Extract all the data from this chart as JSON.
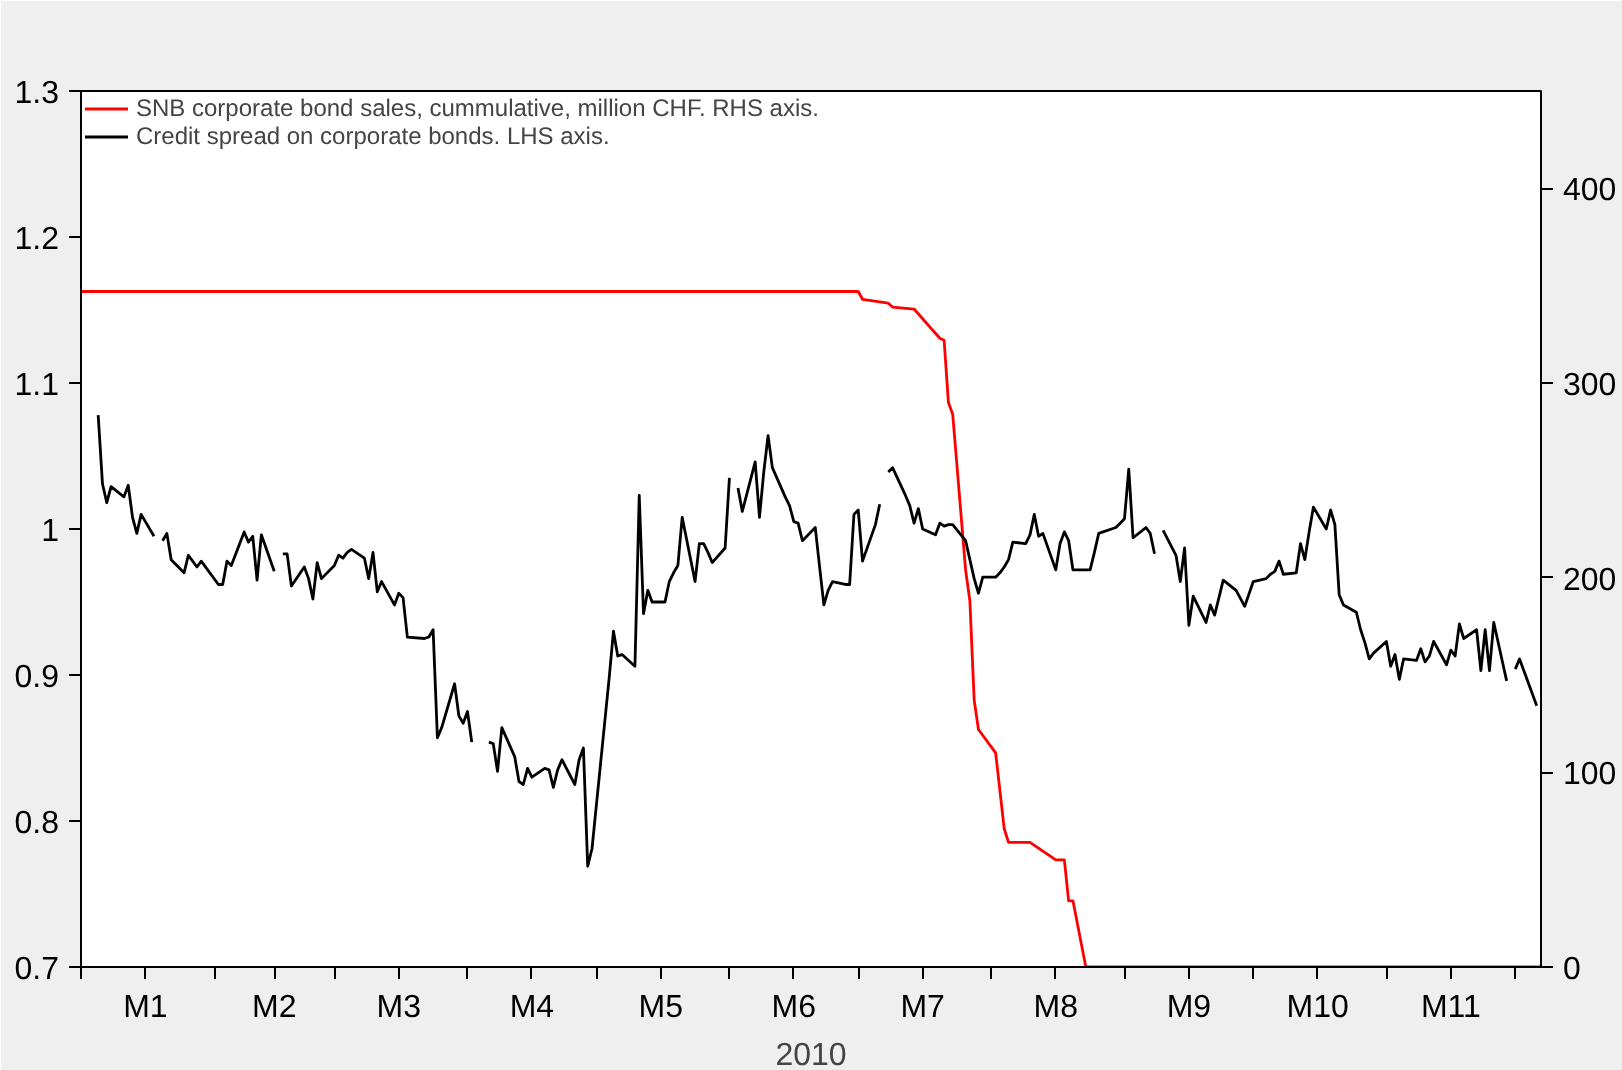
{
  "chart_data": {
    "type": "line",
    "xlabel": "2010",
    "xlim": [
      "2010-01-01",
      "2010-12-07"
    ],
    "xticks": [
      {
        "value": "2010-01-01",
        "label": null
      },
      {
        "value": "2010-02-01",
        "label": null
      },
      {
        "value": "2010-03-01",
        "label": null
      },
      {
        "value": "2010-04-01",
        "label": null
      },
      {
        "value": "2010-05-01",
        "label": null
      },
      {
        "value": "2010-06-01",
        "label": null
      },
      {
        "value": "2010-07-01",
        "label": null
      },
      {
        "value": "2010-08-01",
        "label": null
      },
      {
        "value": "2010-09-01",
        "label": null
      },
      {
        "value": "2010-10-01",
        "label": null
      },
      {
        "value": "2010-11-01",
        "label": null
      },
      {
        "value": "2010-12-01",
        "label": null
      },
      {
        "value": "2010-01-16",
        "label": "M1"
      },
      {
        "value": "2010-02-15",
        "label": "M2"
      },
      {
        "value": "2010-03-16",
        "label": "M3"
      },
      {
        "value": "2010-04-16",
        "label": "M4"
      },
      {
        "value": "2010-05-16",
        "label": "M5"
      },
      {
        "value": "2010-06-16",
        "label": "M6"
      },
      {
        "value": "2010-07-16",
        "label": "M7"
      },
      {
        "value": "2010-08-16",
        "label": "M8"
      },
      {
        "value": "2010-09-16",
        "label": "M9"
      },
      {
        "value": "2010-10-16",
        "label": "M10"
      },
      {
        "value": "2010-11-16",
        "label": "M11"
      }
    ],
    "ylim": [
      0.7,
      1.3
    ],
    "yticks": [
      0.7,
      0.8,
      0.9,
      1.0,
      1.1,
      1.2,
      1.3
    ],
    "y2lim": [
      0,
      450
    ],
    "y2ticks": [
      0,
      100,
      200,
      300,
      400
    ],
    "legend": "top left",
    "grid": false,
    "marker": "none",
    "line_style": "solid",
    "series": [
      {
        "name": "SNB corporate bond sales, cummulative, million CHF. RHS axis.",
        "color": "#ff0000",
        "axis": "y2",
        "x": [
          "2010-01-01",
          "2010-07-01",
          "2010-07-02",
          "2010-07-08",
          "2010-07-09",
          "2010-07-14",
          "2010-07-16",
          "2010-07-20",
          "2010-07-21",
          "2010-07-22",
          "2010-07-23",
          "2010-07-26",
          "2010-07-27",
          "2010-07-28",
          "2010-07-29",
          "2010-08-02",
          "2010-08-04",
          "2010-08-05",
          "2010-08-10",
          "2010-08-16",
          "2010-08-18",
          "2010-08-19",
          "2010-08-20",
          "2010-08-23",
          "2010-12-07"
        ],
        "values": [
          347,
          347,
          343,
          341,
          339,
          338,
          333,
          323,
          322,
          290,
          284,
          204,
          188,
          137,
          122,
          110,
          71,
          64,
          64,
          55,
          55,
          34,
          34,
          0,
          0
        ]
      },
      {
        "name": "Credit spread on corporate bonds. LHS axis.",
        "color": "#000000",
        "x": [
          "2010-01-05",
          "2010-01-06",
          "2010-01-07",
          "2010-01-08",
          "2010-01-11",
          "2010-01-12",
          "2010-01-13",
          "2010-01-14",
          "2010-01-15",
          "2010-01-18",
          "2010-01-19",
          "2010-01-20",
          "2010-01-21",
          "2010-01-22",
          "2010-01-25",
          "2010-01-26",
          "2010-01-27",
          "2010-01-28",
          "2010-01-29",
          "2010-02-02",
          "2010-02-03",
          "2010-02-04",
          "2010-02-05",
          "2010-02-08",
          "2010-02-09",
          "2010-02-10",
          "2010-02-11",
          "2010-02-12",
          "2010-02-15",
          "2010-02-16",
          "2010-02-17",
          "2010-02-18",
          "2010-02-19",
          "2010-02-22",
          "2010-02-23",
          "2010-02-24",
          "2010-02-25",
          "2010-02-26",
          "2010-03-01",
          "2010-03-02",
          "2010-03-03",
          "2010-03-04",
          "2010-03-05",
          "2010-03-08",
          "2010-03-09",
          "2010-03-10",
          "2010-03-11",
          "2010-03-12",
          "2010-03-15",
          "2010-03-16",
          "2010-03-17",
          "2010-03-18",
          "2010-03-22",
          "2010-03-23",
          "2010-03-24",
          "2010-03-25",
          "2010-03-26",
          "2010-03-29",
          "2010-03-30",
          "2010-03-31",
          "2010-04-01",
          "2010-04-02",
          "2010-04-05",
          "2010-04-06",
          "2010-04-07",
          "2010-04-08",
          "2010-04-09",
          "2010-04-12",
          "2010-04-13",
          "2010-04-14",
          "2010-04-15",
          "2010-04-16",
          "2010-04-19",
          "2010-04-20",
          "2010-04-21",
          "2010-04-22",
          "2010-04-23",
          "2010-04-26",
          "2010-04-27",
          "2010-04-28",
          "2010-04-29",
          "2010-04-30",
          "2010-05-04",
          "2010-05-05",
          "2010-05-06",
          "2010-05-07",
          "2010-05-10",
          "2010-05-11",
          "2010-05-12",
          "2010-05-13",
          "2010-05-14",
          "2010-05-17",
          "2010-05-18",
          "2010-05-19",
          "2010-05-20",
          "2010-05-21",
          "2010-05-24",
          "2010-05-25",
          "2010-05-26",
          "2010-05-27",
          "2010-05-28",
          "2010-05-31",
          "2010-06-01",
          "2010-06-02",
          "2010-06-03",
          "2010-06-04",
          "2010-06-07",
          "2010-06-08",
          "2010-06-09",
          "2010-06-10",
          "2010-06-11",
          "2010-06-14",
          "2010-06-15",
          "2010-06-16",
          "2010-06-17",
          "2010-06-18",
          "2010-06-21",
          "2010-06-22",
          "2010-06-23",
          "2010-06-24",
          "2010-06-25",
          "2010-06-28",
          "2010-06-29",
          "2010-06-30",
          "2010-07-01",
          "2010-07-02",
          "2010-07-05",
          "2010-07-06",
          "2010-07-07",
          "2010-07-08",
          "2010-07-09",
          "2010-07-12",
          "2010-07-13",
          "2010-07-14",
          "2010-07-15",
          "2010-07-16",
          "2010-07-19",
          "2010-07-20",
          "2010-07-21",
          "2010-07-22",
          "2010-07-23",
          "2010-07-26",
          "2010-07-27",
          "2010-07-28",
          "2010-07-29",
          "2010-07-30",
          "2010-08-02",
          "2010-08-03",
          "2010-08-04",
          "2010-08-05",
          "2010-08-06",
          "2010-08-09",
          "2010-08-10",
          "2010-08-11",
          "2010-08-12",
          "2010-08-13",
          "2010-08-16",
          "2010-08-17",
          "2010-08-18",
          "2010-08-19",
          "2010-08-20",
          "2010-08-23",
          "2010-08-24",
          "2010-08-25",
          "2010-08-26",
          "2010-08-30",
          "2010-08-31",
          "2010-09-01",
          "2010-09-02",
          "2010-09-03",
          "2010-09-06",
          "2010-09-07",
          "2010-09-08",
          "2010-09-09",
          "2010-09-10",
          "2010-09-13",
          "2010-09-14",
          "2010-09-15",
          "2010-09-16",
          "2010-09-17",
          "2010-09-20",
          "2010-09-21",
          "2010-09-22",
          "2010-09-24",
          "2010-09-27",
          "2010-09-29",
          "2010-10-01",
          "2010-10-04",
          "2010-10-05",
          "2010-10-06",
          "2010-10-07",
          "2010-10-08",
          "2010-10-11",
          "2010-10-12",
          "2010-10-13",
          "2010-10-14",
          "2010-10-15",
          "2010-10-18",
          "2010-10-19",
          "2010-10-20",
          "2010-10-21",
          "2010-10-22",
          "2010-10-25",
          "2010-10-26",
          "2010-10-27",
          "2010-10-28",
          "2010-10-29",
          "2010-11-01",
          "2010-11-02",
          "2010-11-03",
          "2010-11-04",
          "2010-11-05",
          "2010-11-08",
          "2010-11-09",
          "2010-11-10",
          "2010-11-11",
          "2010-11-12",
          "2010-11-15",
          "2010-11-16",
          "2010-11-17",
          "2010-11-18",
          "2010-11-19",
          "2010-11-22",
          "2010-11-23",
          "2010-11-24",
          "2010-11-25",
          "2010-11-26",
          "2010-11-29",
          "2010-11-30",
          "2010-12-01",
          "2010-12-02",
          "2010-12-06"
        ],
        "values": [
          1.078,
          1.031,
          1.018,
          1.029,
          1.022,
          1.03,
          1.008,
          0.997,
          1.01,
          0.995,
          null,
          0.992,
          0.997,
          0.979,
          0.97,
          0.982,
          0.978,
          0.974,
          0.978,
          0.962,
          0.962,
          0.978,
          0.975,
          0.998,
          0.991,
          0.995,
          0.965,
          0.996,
          0.971,
          null,
          0.983,
          0.983,
          0.961,
          0.974,
          0.966,
          0.952,
          0.977,
          0.966,
          0.975,
          0.982,
          0.98,
          0.984,
          0.986,
          0.98,
          0.966,
          0.984,
          0.957,
          0.964,
          0.948,
          0.956,
          0.953,
          0.926,
          0.925,
          0.926,
          0.931,
          0.857,
          0.864,
          0.894,
          0.872,
          0.867,
          0.875,
          0.854,
          null,
          0.854,
          0.853,
          0.834,
          0.864,
          0.844,
          0.827,
          0.825,
          0.836,
          0.83,
          0.836,
          0.835,
          0.823,
          0.835,
          0.842,
          0.825,
          0.842,
          0.85,
          0.769,
          0.781,
          0.898,
          0.93,
          0.913,
          0.914,
          0.906,
          1.023,
          0.942,
          0.958,
          0.95,
          0.95,
          0.964,
          0.97,
          0.975,
          1.008,
          0.964,
          0.99,
          0.99,
          0.984,
          0.977,
          0.987,
          1.035,
          null,
          1.028,
          1.012,
          1.046,
          1.008,
          1.039,
          1.064,
          1.042,
          1.022,
          1.016,
          1.005,
          1.004,
          0.992,
          1.001,
          0.974,
          0.948,
          0.958,
          0.964,
          0.962,
          0.962,
          1.01,
          1.013,
          0.978,
          1.003,
          1.017,
          null,
          1.039,
          1.042,
          1.023,
          1.016,
          1.004,
          1.014,
          1.0,
          0.996,
          1.004,
          1.002,
          1.003,
          1.003,
          0.992,
          0.979,
          0.966,
          0.956,
          0.967,
          0.967,
          0.97,
          0.974,
          0.979,
          0.991,
          0.99,
          0.996,
          1.01,
          0.995,
          0.997,
          0.972,
          0.99,
          0.998,
          0.992,
          0.972,
          0.972,
          0.972,
          0.984,
          0.997,
          1.001,
          1.004,
          1.007,
          1.041,
          0.994,
          1.001,
          0.997,
          0.983,
          null,
          0.999,
          0.982,
          0.964,
          0.987,
          0.934,
          0.954,
          0.936,
          0.948,
          0.941,
          0.965,
          0.958,
          0.947,
          0.964,
          0.966,
          0.969,
          0.971,
          0.978,
          0.969,
          0.97,
          0.99,
          0.979,
          0.998,
          1.015,
          1.0,
          1.013,
          1.003,
          0.955,
          0.948,
          0.943,
          0.931,
          0.922,
          0.911,
          0.915,
          0.923,
          0.906,
          0.914,
          0.897,
          0.911,
          0.91,
          0.918,
          0.909,
          0.913,
          0.923,
          0.907,
          0.917,
          0.913,
          0.935,
          0.925,
          0.931,
          0.903,
          0.931,
          0.903,
          0.936,
          0.896,
          null,
          0.904,
          0.911,
          0.879
        ]
      }
    ]
  }
}
